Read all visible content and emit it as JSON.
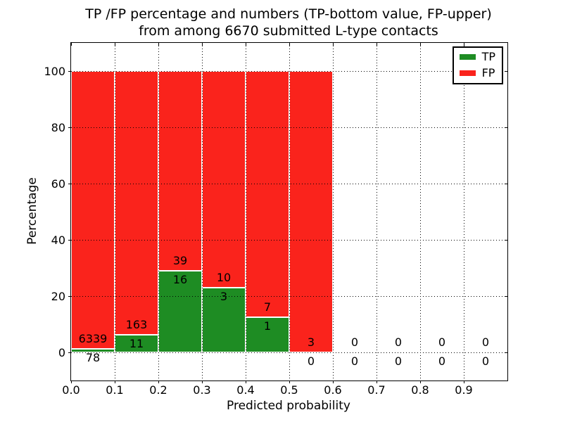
{
  "figure": {
    "title_line1": "TP /FP percentage and numbers (TP-bottom value, FP-upper)",
    "title_line2": "from among 6670 submitted L-type contacts",
    "xlabel": "Predicted probability",
    "ylabel": "Percentage"
  },
  "legend": {
    "items": [
      {
        "label": "TP",
        "color": "#1e8c23"
      },
      {
        "label": "FP",
        "color": "#fa231c"
      }
    ]
  },
  "chart_data": {
    "type": "bar",
    "stacked": true,
    "title": "TP /FP percentage and numbers (TP-bottom value, FP-upper) from among 6670 submitted L-type contacts",
    "xlabel": "Predicted probability",
    "ylabel": "Percentage",
    "total_submitted_contacts": 6670,
    "bin_starts": [
      0.0,
      0.1,
      0.2,
      0.3,
      0.4,
      0.5,
      0.6,
      0.7,
      0.8,
      0.9
    ],
    "bin_width": 0.1,
    "x_tick_labels": [
      "0.0",
      "0.1",
      "0.2",
      "0.3",
      "0.4",
      "0.5",
      "0.6",
      "0.7",
      "0.8",
      "0.9"
    ],
    "x_tick_values": [
      0.0,
      0.1,
      0.2,
      0.3,
      0.4,
      0.5,
      0.6,
      0.7,
      0.8,
      0.9
    ],
    "y_tick_values": [
      0,
      20,
      40,
      60,
      80,
      100
    ],
    "xlim": [
      0.0,
      1.0
    ],
    "ylim": [
      -10,
      110
    ],
    "grid": "dotted",
    "legend_position": "upper-right",
    "series": [
      {
        "name": "TP",
        "color": "#1e8c23",
        "counts": [
          78,
          11,
          16,
          3,
          1,
          0,
          0,
          0,
          0,
          0
        ]
      },
      {
        "name": "FP",
        "color": "#fa231c",
        "counts": [
          6339,
          163,
          39,
          10,
          7,
          3,
          0,
          0,
          0,
          0
        ]
      }
    ],
    "tp_percent_of_bin": [
      1.2,
      6.3,
      29.1,
      23.1,
      12.5,
      0.0,
      0.0,
      0.0,
      0.0,
      0.0
    ]
  }
}
